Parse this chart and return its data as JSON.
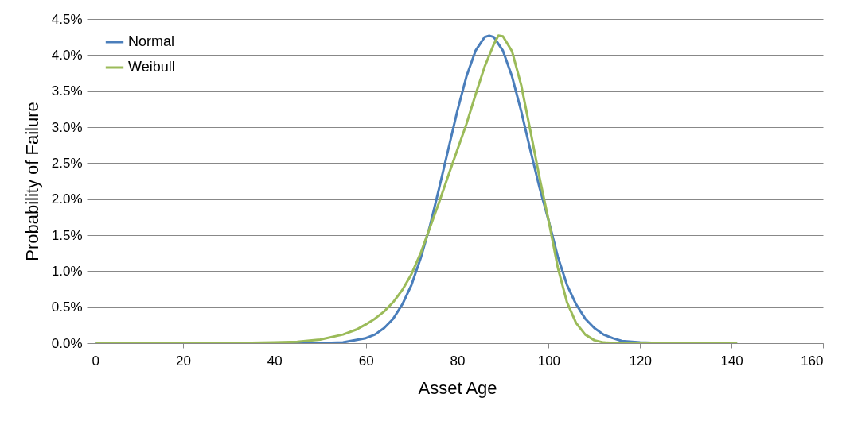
{
  "chart_data": {
    "type": "line",
    "xlabel": "Asset Age",
    "ylabel": "Probability of Failure",
    "xlim": [
      0,
      160
    ],
    "xticks": [
      0,
      20,
      40,
      60,
      80,
      100,
      120,
      140,
      160
    ],
    "ylim": [
      0,
      4.5
    ],
    "yticks": [
      {
        "value": 0,
        "label": "0.0%"
      },
      {
        "value": 0.5,
        "label": "0.5%"
      },
      {
        "value": 1,
        "label": "1.0%"
      },
      {
        "value": 1.5,
        "label": "1.5%"
      },
      {
        "value": 2,
        "label": "2.0%"
      },
      {
        "value": 2.5,
        "label": "2.5%"
      },
      {
        "value": 3,
        "label": "3.0%"
      },
      {
        "value": 3.5,
        "label": "3.5%"
      },
      {
        "value": 4,
        "label": "4.0%"
      },
      {
        "value": 4.5,
        "label": "4.5%"
      }
    ],
    "grid": "y",
    "legend": "top left",
    "marker": "none",
    "line_style": "solid",
    "series": [
      {
        "name": "Normal",
        "color": "#4a7ebb",
        "x": [
          1,
          40,
          50,
          55,
          60,
          62,
          64,
          66,
          68,
          70,
          72,
          74,
          76,
          78,
          80,
          82,
          84,
          86,
          87,
          88,
          90,
          92,
          94,
          96,
          98,
          100,
          102,
          104,
          106,
          108,
          110,
          112,
          114,
          116,
          120,
          125,
          141
        ],
        "values": [
          0,
          0,
          0,
          0.01,
          0.07,
          0.12,
          0.21,
          0.34,
          0.54,
          0.81,
          1.18,
          1.62,
          2.14,
          2.68,
          3.22,
          3.7,
          4.06,
          4.25,
          4.27,
          4.25,
          4.06,
          3.7,
          3.22,
          2.68,
          2.16,
          1.7,
          1.2,
          0.81,
          0.54,
          0.34,
          0.21,
          0.12,
          0.07,
          0.03,
          0.01,
          0,
          0
        ]
      },
      {
        "name": "Weibull",
        "color": "#9bbb59",
        "x": [
          1,
          30,
          40,
          45,
          50,
          55,
          58,
          60,
          62,
          64,
          66,
          68,
          70,
          72,
          74,
          76,
          78,
          80,
          82,
          84,
          86,
          88,
          89,
          90,
          92,
          94,
          96,
          98,
          100,
          102,
          104,
          106,
          108,
          110,
          112,
          115,
          141
        ],
        "values": [
          0,
          0,
          0.01,
          0.02,
          0.05,
          0.12,
          0.19,
          0.26,
          0.34,
          0.44,
          0.57,
          0.74,
          0.96,
          1.25,
          1.6,
          1.95,
          2.32,
          2.68,
          3.04,
          3.45,
          3.84,
          4.15,
          4.27,
          4.26,
          4.05,
          3.58,
          2.95,
          2.3,
          1.7,
          1.05,
          0.57,
          0.28,
          0.12,
          0.04,
          0.01,
          0,
          0
        ]
      }
    ]
  }
}
